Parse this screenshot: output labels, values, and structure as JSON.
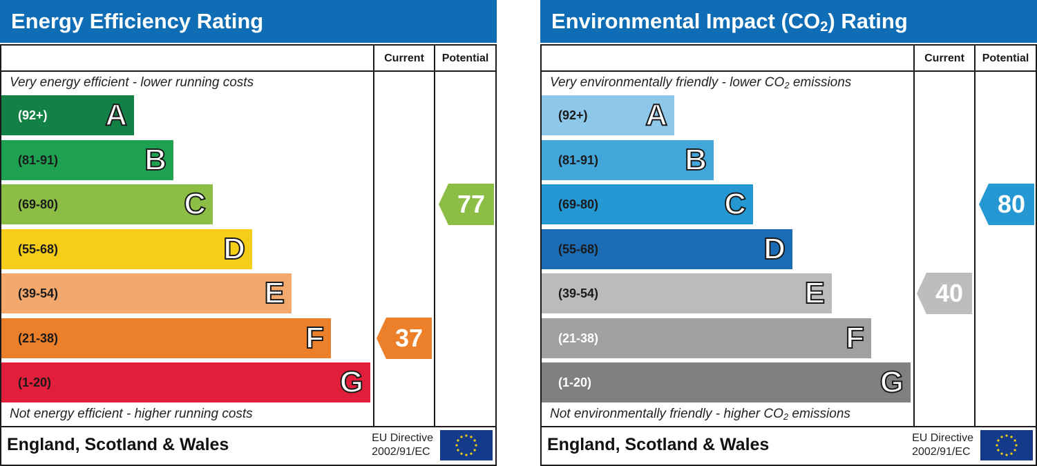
{
  "chart_data": [
    {
      "type": "bar",
      "title": "Energy Efficiency Rating",
      "columns": [
        "Current",
        "Potential"
      ],
      "top_caption": "Very energy efficient - lower running costs",
      "bottom_caption": "Not energy efficient - higher running costs",
      "bands": [
        {
          "letter": "A",
          "range": "(92+)",
          "color": "#138046",
          "text_color": "#ffffff"
        },
        {
          "letter": "B",
          "range": "(81-91)",
          "color": "#1ea251",
          "text_color": "#1a1a1a"
        },
        {
          "letter": "C",
          "range": "(69-80)",
          "color": "#8cbd44",
          "text_color": "#1a1a1a"
        },
        {
          "letter": "D",
          "range": "(55-68)",
          "color": "#f6cd17",
          "text_color": "#1a1a1a"
        },
        {
          "letter": "E",
          "range": "(39-54)",
          "color": "#f2a96b",
          "text_color": "#1a1a1a"
        },
        {
          "letter": "F",
          "range": "(21-38)",
          "color": "#ec7f2a",
          "text_color": "#1a1a1a"
        },
        {
          "letter": "G",
          "range": "(1-20)",
          "color": "#e11f3a",
          "text_color": "#1a1a1a"
        }
      ],
      "current": {
        "value": 37,
        "color": "#ec7f2a"
      },
      "potential": {
        "value": 77,
        "color": "#8cbd44"
      },
      "footer": {
        "region": "England, Scotland & Wales",
        "directive_line1": "EU Directive",
        "directive_line2": "2002/91/EC"
      }
    },
    {
      "type": "bar",
      "title_prefix": "Environmental Impact (CO",
      "title_sub": "2",
      "title_suffix": ") Rating",
      "columns": [
        "Current",
        "Potential"
      ],
      "top_caption_prefix": "Very environmentally friendly - lower CO",
      "top_caption_sub": "2",
      "top_caption_suffix": " emissions",
      "bottom_caption_prefix": "Not environmentally friendly - higher CO",
      "bottom_caption_sub": "2",
      "bottom_caption_suffix": " emissions",
      "bands": [
        {
          "letter": "A",
          "range": "(92+)",
          "color": "#8dc7ea",
          "text_color": "#1a1a1a"
        },
        {
          "letter": "B",
          "range": "(81-91)",
          "color": "#43a6db",
          "text_color": "#1a1a1a"
        },
        {
          "letter": "C",
          "range": "(69-80)",
          "color": "#2597d3",
          "text_color": "#1a1a1a"
        },
        {
          "letter": "D",
          "range": "(55-68)",
          "color": "#1a6db5",
          "text_color": "#1a1a1a"
        },
        {
          "letter": "E",
          "range": "(39-54)",
          "color": "#bbbbbb",
          "text_color": "#1a1a1a"
        },
        {
          "letter": "F",
          "range": "(21-38)",
          "color": "#a0a0a0",
          "text_color": "#ffffff"
        },
        {
          "letter": "G",
          "range": "(1-20)",
          "color": "#808080",
          "text_color": "#ffffff"
        }
      ],
      "current": {
        "value": 40,
        "color": "#bdbdbd"
      },
      "potential": {
        "value": 80,
        "color": "#2597d3"
      },
      "footer": {
        "region": "England, Scotland & Wales",
        "directive_line1": "EU Directive",
        "directive_line2": "2002/91/EC"
      }
    }
  ]
}
